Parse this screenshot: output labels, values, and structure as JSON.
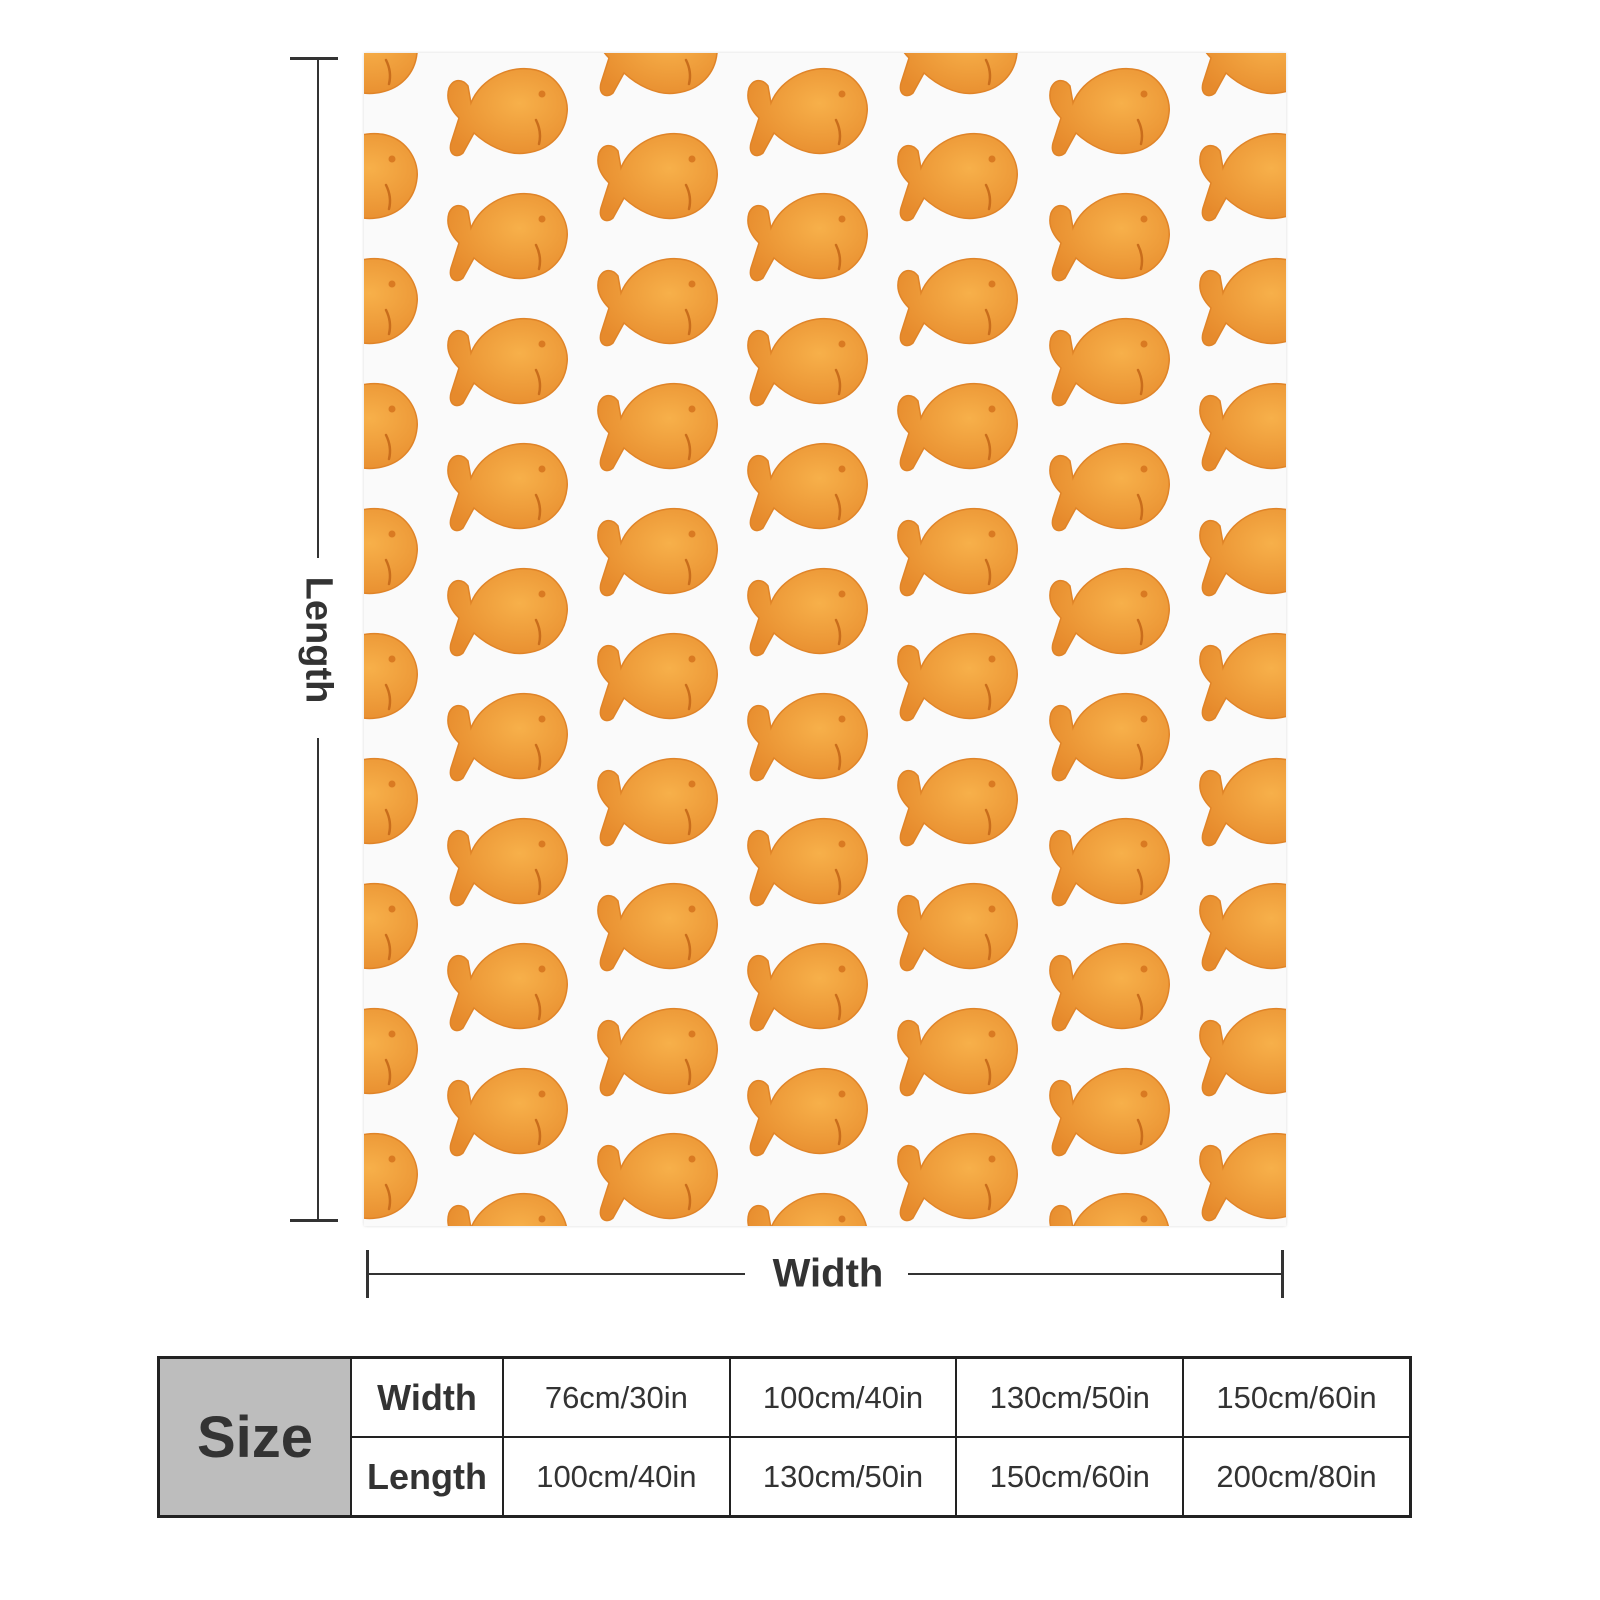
{
  "product": {
    "pattern_icon": "goldfish-cracker-icon",
    "colors": {
      "cracker": "#f0a040",
      "cracker_dark": "#e08428",
      "background": "#fafafa"
    }
  },
  "dimensions": {
    "length_label": "Length",
    "width_label": "Width"
  },
  "size_table": {
    "title": "Size",
    "row_headers": [
      "Width",
      "Length"
    ],
    "columns": [
      {
        "width": "76cm/30in",
        "length": "100cm/40in"
      },
      {
        "width": "100cm/40in",
        "length": "130cm/50in"
      },
      {
        "width": "130cm/50in",
        "length": "150cm/60in"
      },
      {
        "width": "150cm/60in",
        "length": "200cm/80in"
      }
    ]
  }
}
